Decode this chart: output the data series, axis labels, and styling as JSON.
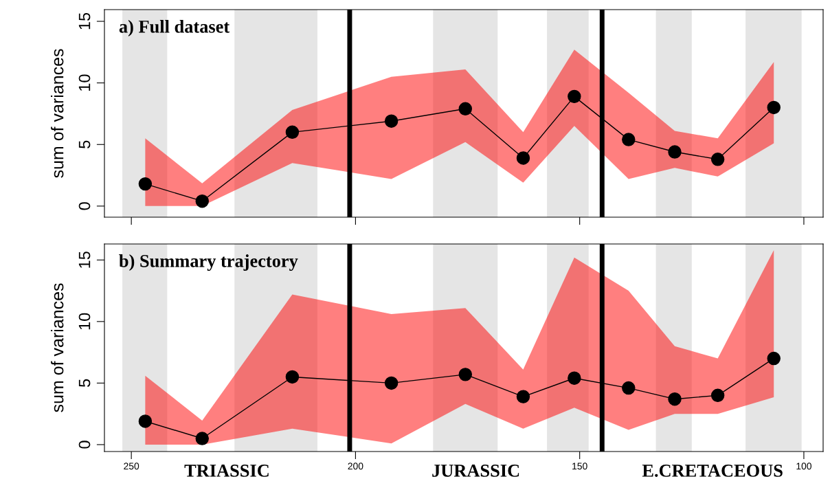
{
  "chart_data": [
    {
      "type": "line",
      "title": "a) Full dataset",
      "ylabel": "sum of variances",
      "x": [
        246.9,
        234.2,
        214.1,
        192.0,
        175.5,
        162.6,
        151.2,
        139.1,
        128.8,
        119.2,
        106.7
      ],
      "series": [
        {
          "color": "#000000",
          "values": [
            1.8,
            0.4,
            6.0,
            6.9,
            7.9,
            3.9,
            8.9,
            5.4,
            4.4,
            3.8,
            8.0
          ],
          "lower": [
            0,
            0,
            3.5,
            2.2,
            5.2,
            1.9,
            6.5,
            2.2,
            3.1,
            2.4,
            5.1
          ],
          "upper": [
            5.5,
            1.85,
            7.8,
            10.5,
            11.1,
            6.0,
            12.7,
            9.2,
            6.1,
            5.5,
            11.7
          ]
        }
      ],
      "xlim": [
        256,
        95.7
      ],
      "ylim": [
        -0.9,
        15.95
      ],
      "xticks": [
        250,
        200,
        150,
        100
      ],
      "yticks": [
        0,
        5,
        10,
        15
      ],
      "marker": "circle",
      "tick_labels": "y",
      "grid": false,
      "legend": false,
      "bands": [
        {
          "axis": "x",
          "from": 252,
          "to": 242,
          "color": "#e5e5e5"
        },
        {
          "axis": "x",
          "from": 227,
          "to": 208.5,
          "color": "#e5e5e5"
        },
        {
          "axis": "x",
          "from": 182.7,
          "to": 168.3,
          "color": "#e5e5e5"
        },
        {
          "axis": "x",
          "from": 157.3,
          "to": 148,
          "color": "#e5e5e5"
        },
        {
          "axis": "x",
          "from": 133,
          "to": 125,
          "color": "#e5e5e5"
        },
        {
          "axis": "x",
          "from": 113,
          "to": 100.5,
          "color": "#e5e5e5"
        }
      ],
      "ref_lines": [
        {
          "axis": "x",
          "value": 201.3,
          "color": "#000000"
        },
        {
          "axis": "x",
          "value": 145.0,
          "color": "#000000"
        }
      ]
    },
    {
      "type": "line",
      "title": "b) Summary trajectory",
      "ylabel": "sum of variances",
      "x": [
        246.9,
        234.2,
        214.1,
        192.0,
        175.5,
        162.6,
        151.2,
        139.1,
        128.8,
        119.2,
        106.7
      ],
      "series": [
        {
          "color": "#000000",
          "values": [
            1.9,
            0.5,
            5.5,
            5.0,
            5.7,
            3.9,
            5.4,
            4.6,
            3.7,
            4.0,
            7.0
          ],
          "lower": [
            0,
            0,
            1.3,
            0.1,
            3.3,
            1.3,
            3.0,
            1.2,
            2.5,
            2.5,
            3.85
          ],
          "upper": [
            5.6,
            1.95,
            12.2,
            10.6,
            11.1,
            6.1,
            15.2,
            12.5,
            8.0,
            7.0,
            15.8
          ]
        }
      ],
      "xlim": [
        256,
        95.7
      ],
      "ylim": [
        -0.56,
        16.3
      ],
      "xticks": [
        250,
        200,
        150,
        100
      ],
      "yticks": [
        0,
        5,
        10,
        15
      ],
      "marker": "circle",
      "grid": false,
      "legend": false,
      "bands": [
        {
          "axis": "x",
          "from": 252,
          "to": 242,
          "color": "#e5e5e5"
        },
        {
          "axis": "x",
          "from": 227,
          "to": 208.5,
          "color": "#e5e5e5"
        },
        {
          "axis": "x",
          "from": 182.7,
          "to": 168.3,
          "color": "#e5e5e5"
        },
        {
          "axis": "x",
          "from": 157.3,
          "to": 148,
          "color": "#e5e5e5"
        },
        {
          "axis": "x",
          "from": 133,
          "to": 125,
          "color": "#e5e5e5"
        },
        {
          "axis": "x",
          "from": 113,
          "to": 100.5,
          "color": "#e5e5e5"
        }
      ],
      "ref_lines": [
        {
          "axis": "x",
          "value": 201.3,
          "color": "#000000"
        },
        {
          "axis": "x",
          "value": 145.0,
          "color": "#000000"
        }
      ],
      "annotations": [
        "TRIASSIC",
        "JURASSIC",
        "E.CRETACEOUS"
      ]
    }
  ]
}
